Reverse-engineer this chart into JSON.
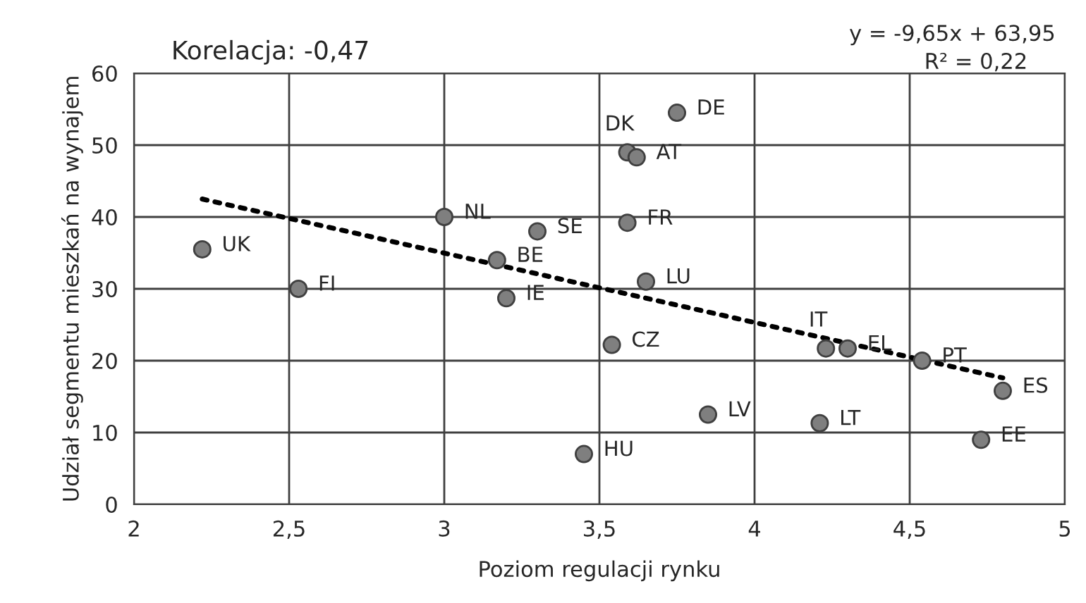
{
  "chart_data": {
    "type": "scatter",
    "xlabel": "Poziom regulacji rynku",
    "ylabel": "Udział segmentu mieszkań na wynajem",
    "series": [
      {
        "type": "scatter",
        "color": "#7f7f7f",
        "marker": "circle",
        "x": [
          2.22,
          2.53,
          3.0,
          3.3,
          3.17,
          3.2,
          3.45,
          3.54,
          3.59,
          3.62,
          3.75,
          3.59,
          3.65,
          3.85,
          4.23,
          4.3,
          4.54,
          4.21,
          4.8,
          4.73
        ],
        "values": [
          35.5,
          30,
          40,
          38,
          34,
          28.7,
          7,
          22.2,
          49,
          48.3,
          54.5,
          39.2,
          31,
          12.5,
          21.7,
          21.7,
          20,
          11.3,
          15.8,
          9
        ]
      },
      {
        "type": "line",
        "color": "#000000",
        "line_style": "dotted",
        "marker": "none",
        "x": [
          2.22,
          4.8
        ],
        "values": [
          42.5,
          17.6
        ]
      }
    ],
    "annotations": [
      "Korelacja: -0,47",
      "y = -9,65x + 63,95",
      "R² = 0,22",
      {
        "text": "UK",
        "x": 2.22,
        "y": 35.5
      },
      {
        "text": "FI",
        "x": 2.53,
        "y": 30
      },
      {
        "text": "NL",
        "x": 3.0,
        "y": 40
      },
      {
        "text": "SE",
        "x": 3.3,
        "y": 38
      },
      {
        "text": "BE",
        "x": 3.17,
        "y": 34
      },
      {
        "text": "IE",
        "x": 3.2,
        "y": 28.7
      },
      {
        "text": "HU",
        "x": 3.45,
        "y": 7
      },
      {
        "text": "CZ",
        "x": 3.54,
        "y": 22.2
      },
      {
        "text": "DK",
        "x": 3.59,
        "y": 49
      },
      {
        "text": "AT",
        "x": 3.62,
        "y": 48.3
      },
      {
        "text": "DE",
        "x": 3.75,
        "y": 54.5
      },
      {
        "text": "FR",
        "x": 3.59,
        "y": 39.2
      },
      {
        "text": "LU",
        "x": 3.65,
        "y": 31
      },
      {
        "text": "LV",
        "x": 3.85,
        "y": 12.5
      },
      {
        "text": "IT",
        "x": 4.23,
        "y": 21.7
      },
      {
        "text": "EL",
        "x": 4.3,
        "y": 21.7
      },
      {
        "text": "PT",
        "x": 4.54,
        "y": 20
      },
      {
        "text": "LT",
        "x": 4.21,
        "y": 11.3
      },
      {
        "text": "ES",
        "x": 4.8,
        "y": 15.8
      },
      {
        "text": "EE",
        "x": 4.73,
        "y": 9
      }
    ],
    "xlim": [
      2,
      5
    ],
    "ylim": [
      0,
      60
    ],
    "xticks": [
      2,
      {
        "value": 2.5,
        "label": "2,5"
      },
      3,
      {
        "value": 3.5,
        "label": "3,5"
      },
      4,
      {
        "value": 4.5,
        "label": "4,5"
      },
      5
    ],
    "yticks": [
      0,
      10,
      20,
      30,
      40,
      50,
      60
    ],
    "grid": true,
    "legend": false
  }
}
